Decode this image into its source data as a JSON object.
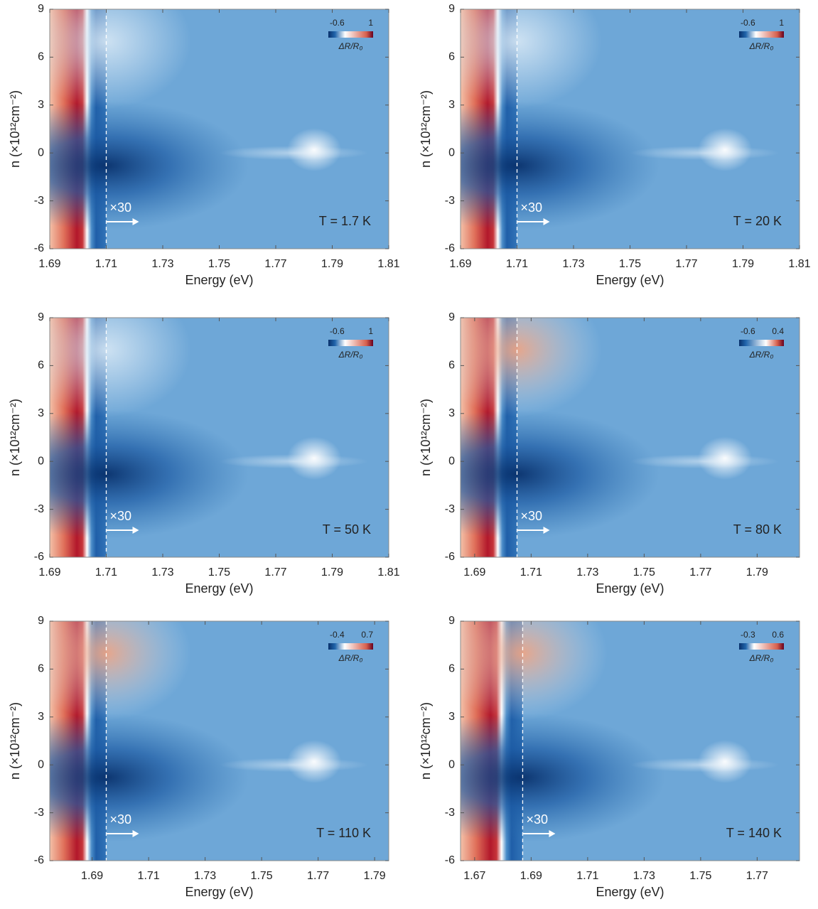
{
  "chart_data": [
    {
      "type": "heatmap",
      "xlabel": "Energy (eV)",
      "ylabel": "n (×10¹²cm⁻²)",
      "xlim": [
        1.69,
        1.81
      ],
      "xticks": [
        1.69,
        1.71,
        1.73,
        1.75,
        1.77,
        1.79,
        1.81
      ],
      "ylim": [
        -6,
        9
      ],
      "yticks": [
        -6,
        -3,
        0,
        3,
        6,
        9
      ],
      "divider": 1.71,
      "scale_label": "×30",
      "annotation": "T = 1.7 K",
      "colorbar": {
        "label": "ΔR/R₀",
        "lim": [
          -0.6,
          1
        ]
      }
    },
    {
      "type": "heatmap",
      "xlabel": "Energy (eV)",
      "ylabel": "n (×10¹²cm⁻²)",
      "xlim": [
        1.69,
        1.81
      ],
      "xticks": [
        1.69,
        1.71,
        1.73,
        1.75,
        1.77,
        1.79,
        1.81
      ],
      "ylim": [
        -6,
        9
      ],
      "yticks": [
        -6,
        -3,
        0,
        3,
        6,
        9
      ],
      "divider": 1.71,
      "scale_label": "×30",
      "annotation": "T = 20 K",
      "colorbar": {
        "label": "ΔR/R₀",
        "lim": [
          -0.6,
          1
        ]
      }
    },
    {
      "type": "heatmap",
      "xlabel": "Energy (eV)",
      "ylabel": "n (×10¹²cm⁻²)",
      "xlim": [
        1.69,
        1.81
      ],
      "xticks": [
        1.69,
        1.71,
        1.73,
        1.75,
        1.77,
        1.79,
        1.81
      ],
      "ylim": [
        -6,
        9
      ],
      "yticks": [
        -6,
        -3,
        0,
        3,
        6,
        9
      ],
      "divider": 1.71,
      "scale_label": "×30",
      "annotation": "T = 50 K",
      "colorbar": {
        "label": "ΔR/R₀",
        "lim": [
          -0.6,
          1
        ]
      }
    },
    {
      "type": "heatmap",
      "xlabel": "Energy (eV)",
      "ylabel": "n (×10¹²cm⁻²)",
      "xlim": [
        1.685,
        1.805
      ],
      "xticks": [
        1.69,
        1.71,
        1.73,
        1.75,
        1.77,
        1.79
      ],
      "ylim": [
        -6,
        9
      ],
      "yticks": [
        -6,
        -3,
        0,
        3,
        6,
        9
      ],
      "divider": 1.705,
      "scale_label": "×30",
      "annotation": "T = 80 K",
      "colorbar": {
        "label": "ΔR/R₀",
        "lim": [
          -0.6,
          0.4
        ]
      }
    },
    {
      "type": "heatmap",
      "xlabel": "Energy (eV)",
      "ylabel": "n (×10¹²cm⁻²)",
      "xlim": [
        1.675,
        1.795
      ],
      "xticks": [
        1.69,
        1.71,
        1.73,
        1.75,
        1.77,
        1.79
      ],
      "ylim": [
        -6,
        9
      ],
      "yticks": [
        -6,
        -3,
        0,
        3,
        6,
        9
      ],
      "divider": 1.695,
      "scale_label": "×30",
      "annotation": "T = 110 K",
      "colorbar": {
        "label": "ΔR/R₀",
        "lim": [
          -0.4,
          0.7
        ]
      }
    },
    {
      "type": "heatmap",
      "xlabel": "Energy (eV)",
      "ylabel": "n (×10¹²cm⁻²)",
      "xlim": [
        1.665,
        1.785
      ],
      "xticks": [
        1.67,
        1.69,
        1.71,
        1.73,
        1.75,
        1.77
      ],
      "ylim": [
        -6,
        9
      ],
      "yticks": [
        -6,
        -3,
        0,
        3,
        6,
        9
      ],
      "divider": 1.687,
      "scale_label": "×30",
      "annotation": "T = 140 K",
      "colorbar": {
        "label": "ΔR/R₀",
        "lim": [
          -0.3,
          0.6
        ]
      }
    }
  ]
}
